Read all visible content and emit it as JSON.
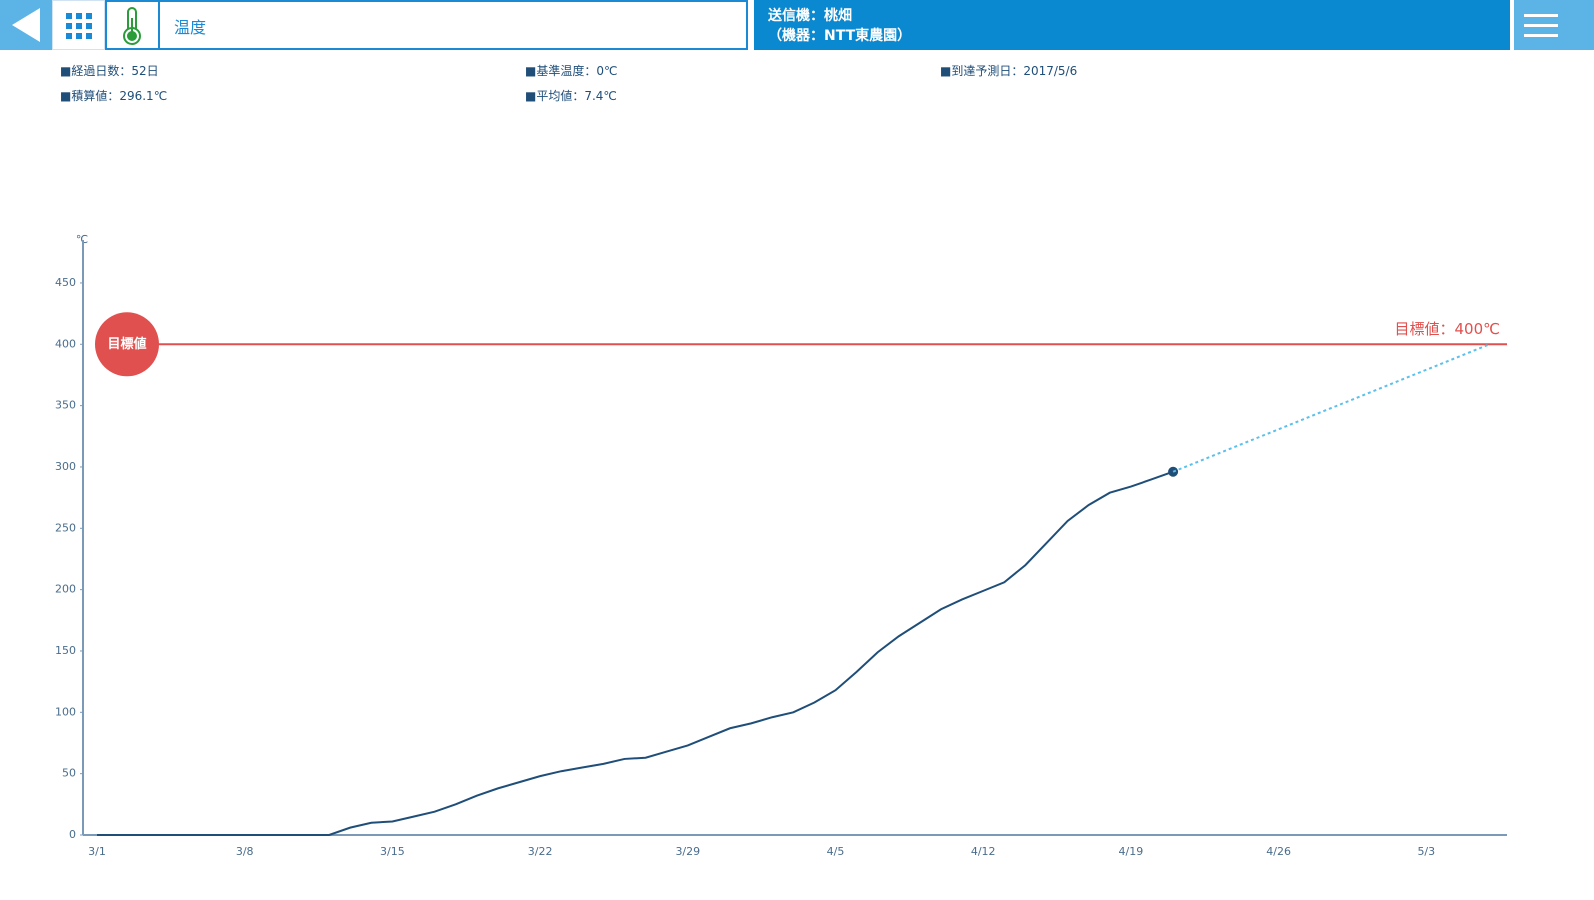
{
  "header": {
    "title": "温度",
    "device_line1": "送信機：桃畑",
    "device_line2": "（機器：NTT東農園）"
  },
  "stats": [
    "■経過日数：52日",
    "■基準温度：0℃",
    "■到達予測日：2017/5/6",
    "■積算値：296.1℃",
    "■平均値：7.4℃"
  ],
  "chart_data": {
    "type": "line",
    "y_label": "℃",
    "ylim": [
      0,
      485
    ],
    "yticks": [
      0,
      50,
      100,
      150,
      200,
      250,
      300,
      350,
      400,
      450
    ],
    "xticks": [
      "3/1",
      "3/8",
      "3/15",
      "3/22",
      "3/29",
      "4/5",
      "4/12",
      "4/19",
      "4/26",
      "5/3"
    ],
    "target": {
      "name": "目標値",
      "value": 400,
      "label": "目標値：400℃",
      "color": "#e0504e"
    },
    "series": [
      {
        "color": "#1f4e79",
        "x": [
          "3/1",
          "3/2",
          "3/3",
          "3/4",
          "3/5",
          "3/6",
          "3/7",
          "3/8",
          "3/9",
          "3/10",
          "3/11",
          "3/12",
          "3/13",
          "3/14",
          "3/15",
          "3/16",
          "3/17",
          "3/18",
          "3/19",
          "3/20",
          "3/21",
          "3/22",
          "3/23",
          "3/24",
          "3/25",
          "3/26",
          "3/27",
          "3/28",
          "3/29",
          "3/30",
          "3/31",
          "4/1",
          "4/2",
          "4/3",
          "4/4",
          "4/5",
          "4/6",
          "4/7",
          "4/8",
          "4/9",
          "4/10",
          "4/11",
          "4/12",
          "4/13",
          "4/14",
          "4/15",
          "4/16",
          "4/17",
          "4/18",
          "4/19",
          "4/20",
          "4/21"
        ],
        "values": [
          0,
          0,
          0,
          0,
          0,
          0,
          0,
          0,
          0,
          0,
          0,
          0,
          6,
          10,
          11,
          15,
          19,
          25,
          32,
          38,
          43,
          48,
          52,
          55,
          58,
          62,
          63,
          68,
          73,
          80,
          87,
          91,
          96,
          100,
          108,
          118,
          133,
          149,
          162,
          173,
          184,
          192,
          199,
          206,
          220,
          238,
          256,
          269,
          279,
          284,
          290,
          296.1
        ]
      },
      {
        "color": "#5bc0eb",
        "dashed": true,
        "x": [
          "4/21",
          "5/6"
        ],
        "values": [
          296.1,
          400
        ]
      }
    ]
  }
}
